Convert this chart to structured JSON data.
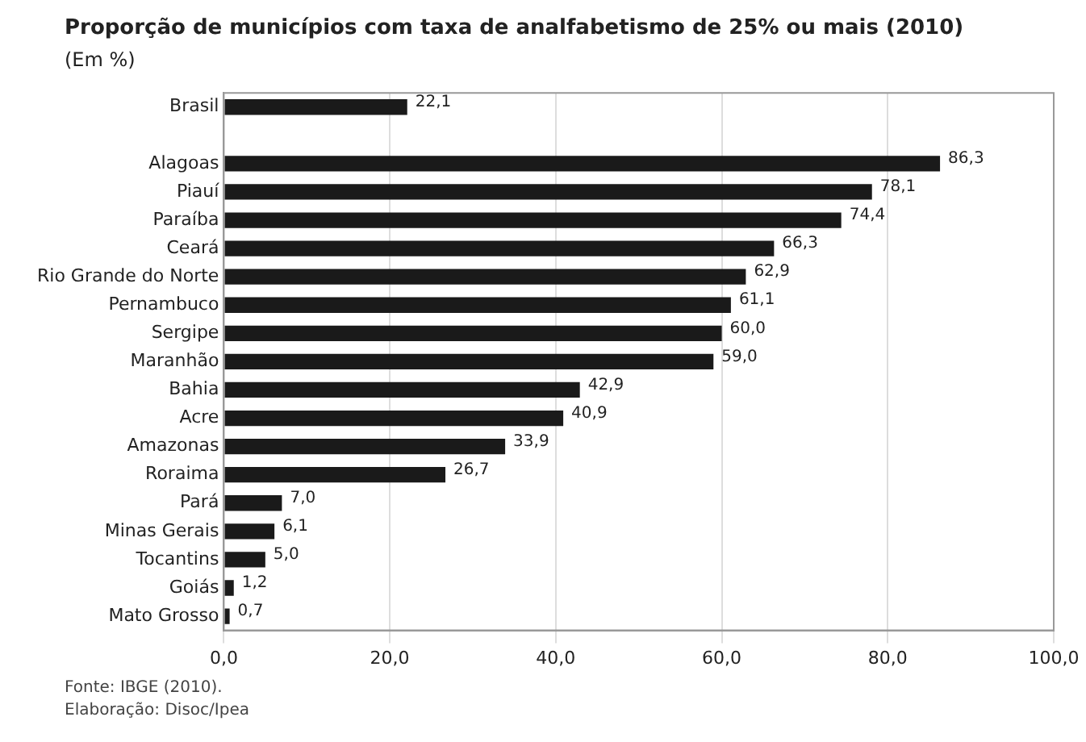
{
  "chart_data": {
    "type": "bar",
    "orientation": "horizontal",
    "title": "Proporção de municípios com taxa de analfabetismo de 25% ou mais (2010)",
    "subtitle": "(Em %)",
    "categories": [
      "Brasil",
      null,
      "Alagoas",
      "Piauí",
      "Paraíba",
      "Ceará",
      "Rio Grande do Norte",
      "Pernambuco",
      "Sergipe",
      "Maranhão",
      "Bahia",
      "Acre",
      "Amazonas",
      "Roraima",
      "Pará",
      "Minas Gerais",
      "Tocantins",
      "Goiás",
      "Mato Grosso"
    ],
    "values": [
      22.1,
      null,
      86.3,
      78.1,
      74.4,
      66.3,
      62.9,
      61.1,
      60.0,
      59.0,
      42.9,
      40.9,
      33.9,
      26.7,
      7.0,
      6.1,
      5.0,
      1.2,
      0.7
    ],
    "value_labels": [
      "22,1",
      null,
      "86,3",
      "78,1",
      "74,4",
      "66,3",
      "62,9",
      "61,1",
      "60,0",
      "59,0",
      "42,9",
      "40,9",
      "33,9",
      "26,7",
      "7,0",
      "6,1",
      "5,0",
      "1,2",
      "0,7"
    ],
    "color": "#1a1a1a",
    "xlim": [
      0,
      100
    ],
    "xticks": [
      {
        "value": 0,
        "label": "0,0"
      },
      {
        "value": 20,
        "label": "20,0"
      },
      {
        "value": 40,
        "label": "40,0"
      },
      {
        "value": 60,
        "label": "60,0"
      },
      {
        "value": 80,
        "label": "80,0"
      },
      {
        "value": 100,
        "label": "100,0"
      }
    ],
    "grid": "x",
    "annotations": [
      "Fonte: IBGE (2010).",
      "Elaboração: Disoc/Ipea"
    ]
  }
}
